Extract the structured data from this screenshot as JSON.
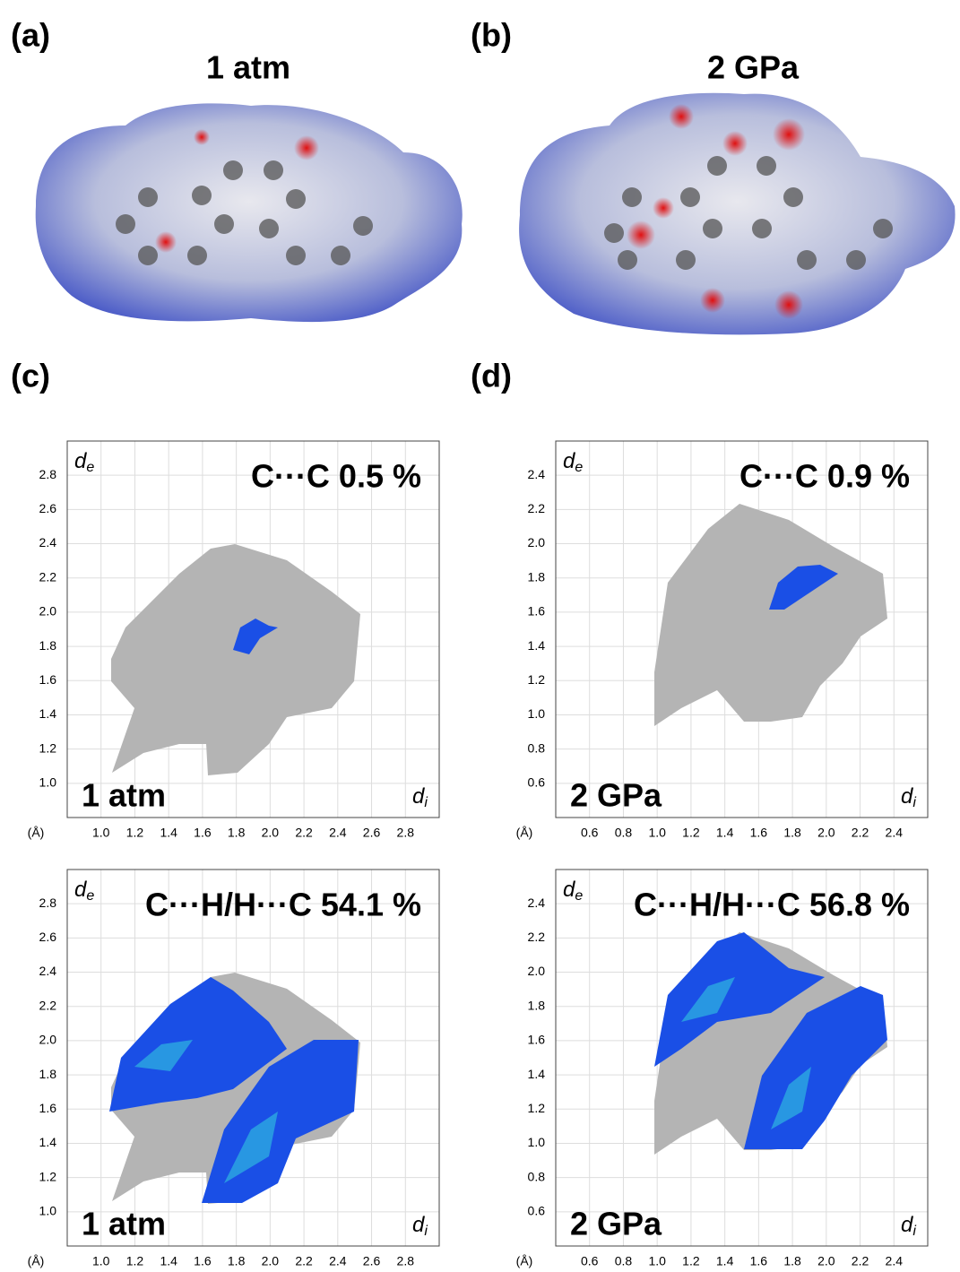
{
  "panels": [
    {
      "label": "(a)",
      "title": "1 atm"
    },
    {
      "label": "(b)",
      "title": "2 GPa"
    },
    {
      "label": "(c)"
    },
    {
      "label": "(d)"
    }
  ],
  "chart_data": [
    {
      "type": "fingerprint",
      "title": "C···C 0.5 %",
      "condition": "1 atm",
      "x_label": "d",
      "x_sub": "i",
      "y_label": "d",
      "y_sub": "e",
      "unit": "(Å)",
      "xlim": [
        0.8,
        3.0
      ],
      "ylim": [
        0.8,
        3.0
      ],
      "grid": true,
      "xticks": [
        {
          "value": 1.0,
          "label": "1.0"
        },
        1.2,
        1.4,
        1.6,
        1.8,
        {
          "value": 2.0,
          "label": "2.0"
        },
        2.2,
        2.4,
        2.6,
        2.8
      ],
      "yticks": [
        {
          "value": 1.0,
          "label": "1.0"
        },
        1.2,
        1.4,
        1.6,
        1.8,
        {
          "value": 2.0,
          "label": "2.0"
        },
        2.2,
        2.4,
        2.6,
        2.8
      ]
    },
    {
      "type": "fingerprint",
      "title": "C···C 0.9 %",
      "condition": "2 GPa",
      "x_label": "d",
      "x_sub": "i",
      "y_label": "d",
      "y_sub": "e",
      "unit": "(Å)",
      "xlim": [
        0.4,
        2.6
      ],
      "ylim": [
        0.4,
        2.6
      ],
      "grid": true,
      "xticks": [
        0.6,
        0.8,
        {
          "value": 1.0,
          "label": "1.0"
        },
        1.2,
        1.4,
        1.6,
        1.8,
        {
          "value": 2.0,
          "label": "2.0"
        },
        2.2,
        2.4
      ],
      "yticks": [
        0.6,
        0.8,
        {
          "value": 1.0,
          "label": "1.0"
        },
        1.2,
        1.4,
        1.6,
        1.8,
        {
          "value": 2.0,
          "label": "2.0"
        },
        2.2,
        2.4
      ]
    },
    {
      "type": "fingerprint",
      "title": "C···H/H···C 54.1 %",
      "condition": "1 atm",
      "x_label": "d",
      "x_sub": "i",
      "y_label": "d",
      "y_sub": "e",
      "unit": "(Å)",
      "xlim": [
        0.8,
        3.0
      ],
      "ylim": [
        0.8,
        3.0
      ],
      "grid": true,
      "xticks": [
        {
          "value": 1.0,
          "label": "1.0"
        },
        1.2,
        1.4,
        1.6,
        1.8,
        {
          "value": 2.0,
          "label": "2.0"
        },
        2.2,
        2.4,
        2.6,
        2.8
      ],
      "yticks": [
        {
          "value": 1.0,
          "label": "1.0"
        },
        1.2,
        1.4,
        1.6,
        1.8,
        {
          "value": 2.0,
          "label": "2.0"
        },
        2.2,
        2.4,
        2.6,
        2.8
      ]
    },
    {
      "type": "fingerprint",
      "title": "C···H/H···C 56.8 %",
      "condition": "2 GPa",
      "x_label": "d",
      "x_sub": "i",
      "y_label": "d",
      "y_sub": "e",
      "unit": "(Å)",
      "xlim": [
        0.4,
        2.6
      ],
      "ylim": [
        0.4,
        2.6
      ],
      "grid": true,
      "xticks": [
        0.6,
        0.8,
        {
          "value": 1.0,
          "label": "1.0"
        },
        1.2,
        1.4,
        1.6,
        1.8,
        {
          "value": 2.0,
          "label": "2.0"
        },
        2.2,
        2.4
      ],
      "yticks": [
        0.6,
        0.8,
        {
          "value": 1.0,
          "label": "1.0"
        },
        1.2,
        1.4,
        1.6,
        1.8,
        {
          "value": 2.0,
          "label": "2.0"
        },
        2.2,
        2.4
      ]
    }
  ]
}
